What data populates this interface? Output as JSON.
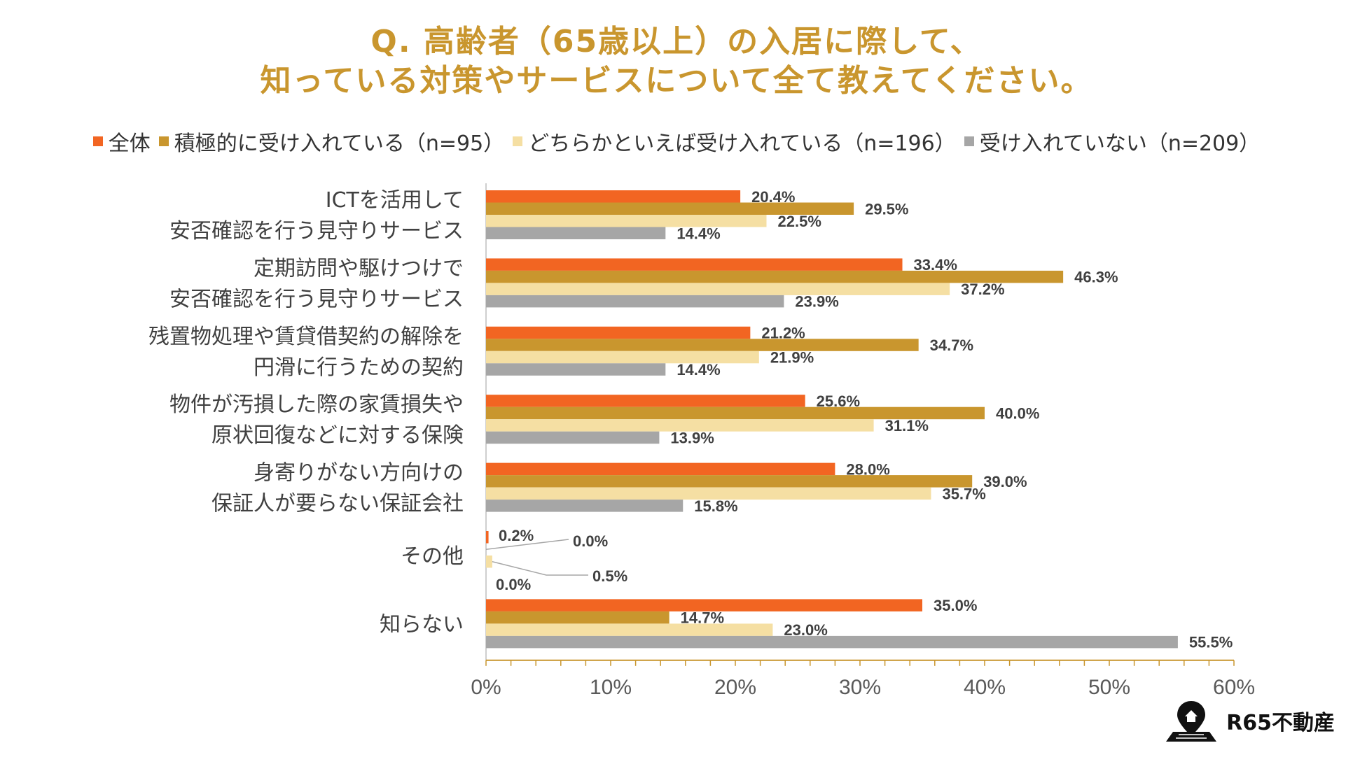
{
  "title": {
    "line1": "Q. 高齢者（65歳以上）の入居に際して、",
    "line2": "知っている対策やサービスについて全て教えてください。"
  },
  "brand": {
    "name": "R65不動産",
    "icon": "map-pin-house-icon"
  },
  "chart_data": {
    "type": "bar",
    "orientation": "horizontal",
    "title": "Q. 高齢者（65歳以上）の入居に際して、知っている対策やサービスについて全て教えてください。",
    "categories": [
      [
        "ICTを活用して",
        "安否確認を行う見守りサービス"
      ],
      [
        "定期訪問や駆けつけで",
        "安否確認を行う見守りサービス"
      ],
      [
        "残置物処理や賃貸借契約の解除を",
        "円滑に行うための契約"
      ],
      [
        "物件が汚損した際の家賃損失や",
        "原状回復などに対する保険"
      ],
      [
        "身寄りがない方向けの",
        "保証人が要らない保証会社"
      ],
      [
        "その他"
      ],
      [
        "知らない"
      ]
    ],
    "series": [
      {
        "name": "全体",
        "color": "#F26522",
        "values": [
          20.4,
          33.4,
          21.2,
          25.6,
          28.0,
          0.2,
          35.0
        ],
        "labels": [
          "20.4%",
          "33.4%",
          "21.2%",
          "25.6%",
          "28.0%",
          "0.2%",
          "35.0%"
        ]
      },
      {
        "name": "積極的に受け入れている（n=95）",
        "color": "#C9962E",
        "values": [
          29.5,
          46.3,
          34.7,
          40.0,
          39.0,
          0.0,
          14.7
        ],
        "labels": [
          "29.5%",
          "46.3%",
          "34.7%",
          "40.0%",
          "39.0%",
          "0.0%",
          "14.7%"
        ]
      },
      {
        "name": "どちらかといえば受け入れている（n=196）",
        "color": "#F5DFA3",
        "values": [
          22.5,
          37.2,
          21.9,
          31.1,
          35.7,
          0.5,
          23.0
        ],
        "labels": [
          "22.5%",
          "37.2%",
          "21.9%",
          "31.1%",
          "35.7%",
          "0.5%",
          "23.0%"
        ]
      },
      {
        "name": "受け入れていない（n=209）",
        "color": "#A6A6A6",
        "values": [
          14.4,
          23.9,
          14.4,
          13.9,
          15.8,
          0.0,
          55.5
        ],
        "labels": [
          "14.4%",
          "23.9%",
          "14.4%",
          "13.9%",
          "15.8%",
          "0.0%",
          "55.5%"
        ]
      }
    ],
    "xlim": [
      0,
      60
    ],
    "xticks": [
      "0%",
      "10%",
      "20%",
      "30%",
      "40%",
      "50%",
      "60%"
    ],
    "grid": false,
    "legend_position": "top"
  }
}
